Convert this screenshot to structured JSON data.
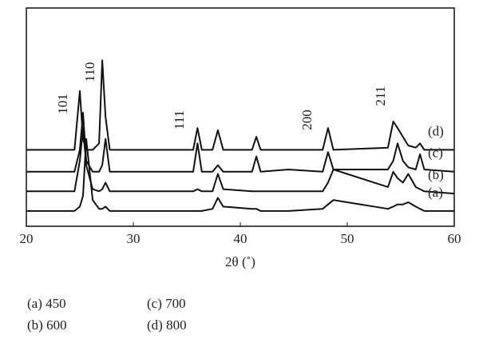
{
  "chart_data": {
    "type": "line",
    "x": [
      20,
      24.5,
      25.0,
      25.3,
      25.6,
      26.2,
      26.8,
      27.1,
      27.4,
      27.8,
      30,
      35.6,
      36.0,
      36.4,
      37.4,
      37.9,
      38.4,
      41.1,
      41.5,
      41.9,
      44.5,
      47.7,
      48.2,
      48.7,
      53.8,
      54.3,
      54.7,
      55.2,
      55.7,
      56.4,
      56.8,
      57.2,
      60
    ],
    "series": [
      {
        "name": "(d)",
        "color": "#111111",
        "values": [
          35,
          35,
          62,
          40,
          35,
          35,
          38,
          76,
          50,
          35,
          35,
          35,
          45,
          35,
          35,
          44,
          35,
          35,
          41,
          35,
          35,
          35,
          45,
          35,
          36,
          48,
          45,
          41,
          37,
          36,
          38,
          35,
          35
        ]
      },
      {
        "name": "(c)",
        "color": "#111111",
        "values": [
          25,
          25,
          35,
          52,
          30,
          25,
          25,
          28,
          40,
          25,
          25,
          25,
          38,
          25,
          25,
          28,
          25,
          25,
          32,
          25,
          26,
          25,
          34,
          26,
          26,
          30,
          38,
          30,
          27,
          26,
          33,
          26,
          25
        ]
      },
      {
        "name": "(b)",
        "color": "#111111",
        "values": [
          16,
          16,
          30,
          45,
          28,
          17,
          16,
          17,
          20,
          16,
          16,
          16,
          17,
          16,
          16,
          24,
          17,
          16,
          16,
          16,
          16,
          16,
          20,
          26,
          18,
          25,
          22,
          20,
          24,
          18,
          17,
          16,
          15
        ]
      },
      {
        "name": "(a)",
        "color": "#111111",
        "values": [
          7,
          7,
          9,
          14,
          40,
          12,
          8,
          8,
          9,
          7,
          7,
          7,
          7,
          7,
          8,
          13,
          9,
          8,
          8,
          7,
          7,
          8,
          10,
          12,
          8,
          9,
          10,
          10,
          11,
          9,
          8,
          7,
          7
        ]
      }
    ],
    "annotations": [
      "101",
      "110",
      "111",
      "200",
      "211"
    ],
    "xlabel": "2θ (˚)",
    "xlim": [
      20,
      60
    ],
    "xticks": [
      20,
      30,
      40,
      50,
      60
    ],
    "ylim": [
      0,
      100
    ],
    "legend_notes": [
      "(a) 450",
      "(b) 600",
      "(c) 700",
      "(d) 800"
    ]
  }
}
